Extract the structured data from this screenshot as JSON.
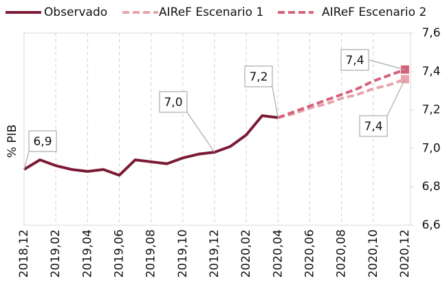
{
  "chart_data": {
    "type": "line",
    "y_label": "% PIB",
    "categories": [
      "2018,12",
      null,
      "2019,02",
      null,
      "2019,04",
      null,
      "2019,06",
      null,
      "2019,08",
      null,
      "2019,10",
      null,
      "2019,12",
      null,
      "2020,02",
      null,
      "2020,04",
      null,
      "2020,06",
      null,
      "2020,08",
      null,
      "2020,10",
      null,
      "2020,12"
    ],
    "series": [
      {
        "name": "Observado",
        "color": "#7b1a35",
        "dash": false,
        "values": [
          6.89,
          6.94,
          6.91,
          6.89,
          6.88,
          6.89,
          6.86,
          6.94,
          6.93,
          6.92,
          6.95,
          6.97,
          6.98,
          7.01,
          7.07,
          7.17,
          7.16,
          null,
          null,
          null,
          null,
          null,
          null,
          null,
          null
        ],
        "value_labels": [
          "6,9",
          null,
          null,
          null,
          null,
          null,
          null,
          null,
          null,
          null,
          null,
          null,
          "7,0",
          null,
          null,
          null,
          "7,2",
          null,
          null,
          null,
          null,
          null,
          null,
          null,
          null
        ]
      },
      {
        "name": "AIReF Escenario 1",
        "color": "#e8a3ad",
        "dash": true,
        "values": [
          null,
          null,
          null,
          null,
          null,
          null,
          null,
          null,
          null,
          null,
          null,
          null,
          null,
          null,
          null,
          null,
          7.16,
          7.18,
          7.21,
          7.23,
          7.26,
          7.28,
          7.31,
          7.33,
          7.36
        ],
        "value_labels": [
          null,
          null,
          null,
          null,
          null,
          null,
          null,
          null,
          null,
          null,
          null,
          null,
          null,
          null,
          null,
          null,
          null,
          null,
          null,
          null,
          null,
          null,
          null,
          null,
          "7,4"
        ]
      },
      {
        "name": "AIReF Escenario 2",
        "color": "#d4627a",
        "dash": true,
        "values": [
          null,
          null,
          null,
          null,
          null,
          null,
          null,
          null,
          null,
          null,
          null,
          null,
          null,
          null,
          null,
          null,
          7.16,
          7.19,
          7.22,
          7.25,
          7.28,
          7.31,
          7.35,
          7.38,
          7.41
        ],
        "value_labels": [
          null,
          null,
          null,
          null,
          null,
          null,
          null,
          null,
          null,
          null,
          null,
          null,
          null,
          null,
          null,
          null,
          null,
          null,
          null,
          null,
          null,
          null,
          null,
          null,
          "7,4"
        ]
      }
    ],
    "ylim": [
      6.6,
      7.6
    ],
    "yticks": [
      {
        "value": 6.6,
        "label": "6,6"
      },
      {
        "value": 6.8,
        "label": "6,8"
      },
      {
        "value": 7.0,
        "label": "7,0"
      },
      {
        "value": 7.2,
        "label": "7,2"
      },
      {
        "value": 7.4,
        "label": "7,4"
      },
      {
        "value": 7.6,
        "label": "7,6"
      }
    ],
    "grid_x": true,
    "legend": "top"
  }
}
